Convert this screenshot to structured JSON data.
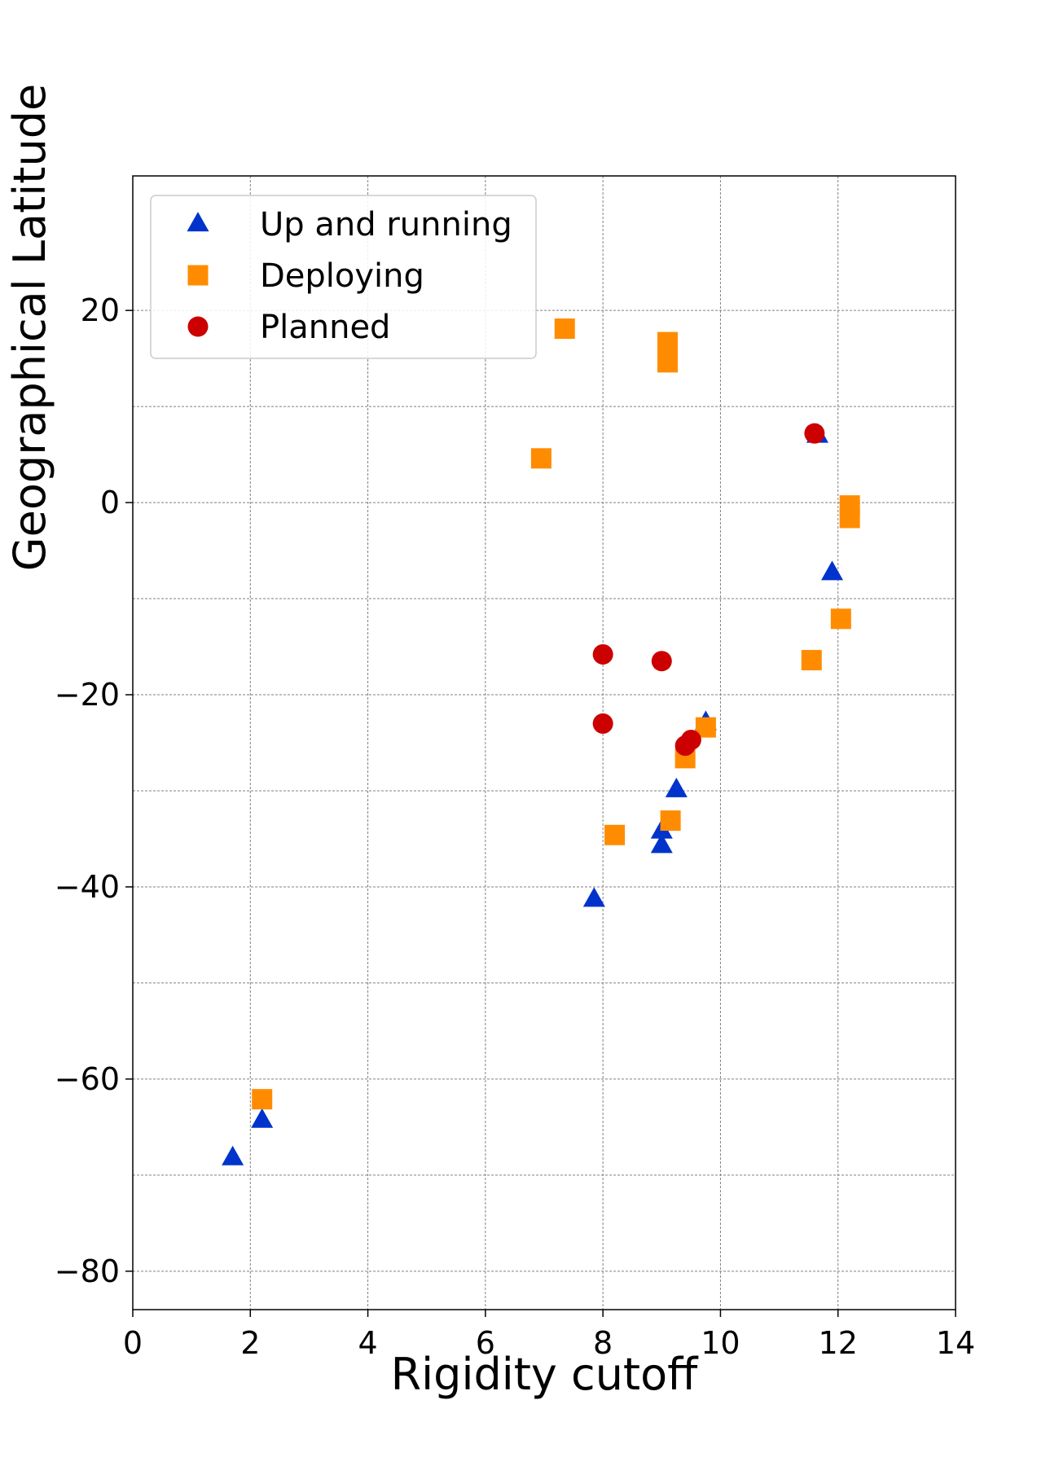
{
  "chart_data": {
    "type": "scatter",
    "title": "",
    "xlabel": "Rigidity cutoff",
    "ylabel": "Geographical Latitude",
    "xlim": [
      0,
      14
    ],
    "ylim": [
      -84,
      34
    ],
    "x_ticks": [
      0,
      2,
      4,
      6,
      8,
      10,
      12,
      14
    ],
    "y_ticks": [
      -80,
      -60,
      -40,
      -20,
      0,
      20
    ],
    "y_minor_grid": [
      -70,
      -50,
      -30,
      -10,
      10
    ],
    "x_tick_labels": [
      "0",
      "2",
      "4",
      "6",
      "8",
      "10",
      "12",
      "14"
    ],
    "y_tick_labels": [
      "−80",
      "−60",
      "−40",
      "−20",
      "0",
      "20"
    ],
    "grid": true,
    "legend_position": "top-left",
    "series": [
      {
        "name": "Up and running",
        "marker": "triangle",
        "color": "#0033cc",
        "points": [
          [
            11.65,
            7.0
          ],
          [
            11.9,
            -7.3
          ],
          [
            9.75,
            -22.9
          ],
          [
            9.25,
            -29.9
          ],
          [
            9.0,
            -34.2
          ],
          [
            9.0,
            -35.7
          ],
          [
            7.85,
            -41.3
          ],
          [
            2.2,
            -64.3
          ],
          [
            1.7,
            -68.2
          ]
        ]
      },
      {
        "name": "Deploying",
        "marker": "square",
        "color": "#ff8c00",
        "points": [
          [
            7.35,
            18.1
          ],
          [
            9.1,
            16.7
          ],
          [
            9.1,
            15.6
          ],
          [
            9.1,
            14.6
          ],
          [
            6.95,
            4.6
          ],
          [
            12.2,
            -0.3
          ],
          [
            12.2,
            -1.6
          ],
          [
            12.05,
            -12.1
          ],
          [
            11.55,
            -16.4
          ],
          [
            9.75,
            -23.4
          ],
          [
            9.4,
            -26.6
          ],
          [
            9.15,
            -33.1
          ],
          [
            8.2,
            -34.6
          ],
          [
            2.2,
            -62.1
          ]
        ]
      },
      {
        "name": "Planned",
        "marker": "circle",
        "color": "#cc0000",
        "points": [
          [
            11.6,
            7.2
          ],
          [
            8.0,
            -15.8
          ],
          [
            9.0,
            -16.5
          ],
          [
            8.0,
            -23.0
          ],
          [
            9.4,
            -25.3
          ],
          [
            9.5,
            -24.7
          ]
        ]
      }
    ]
  }
}
